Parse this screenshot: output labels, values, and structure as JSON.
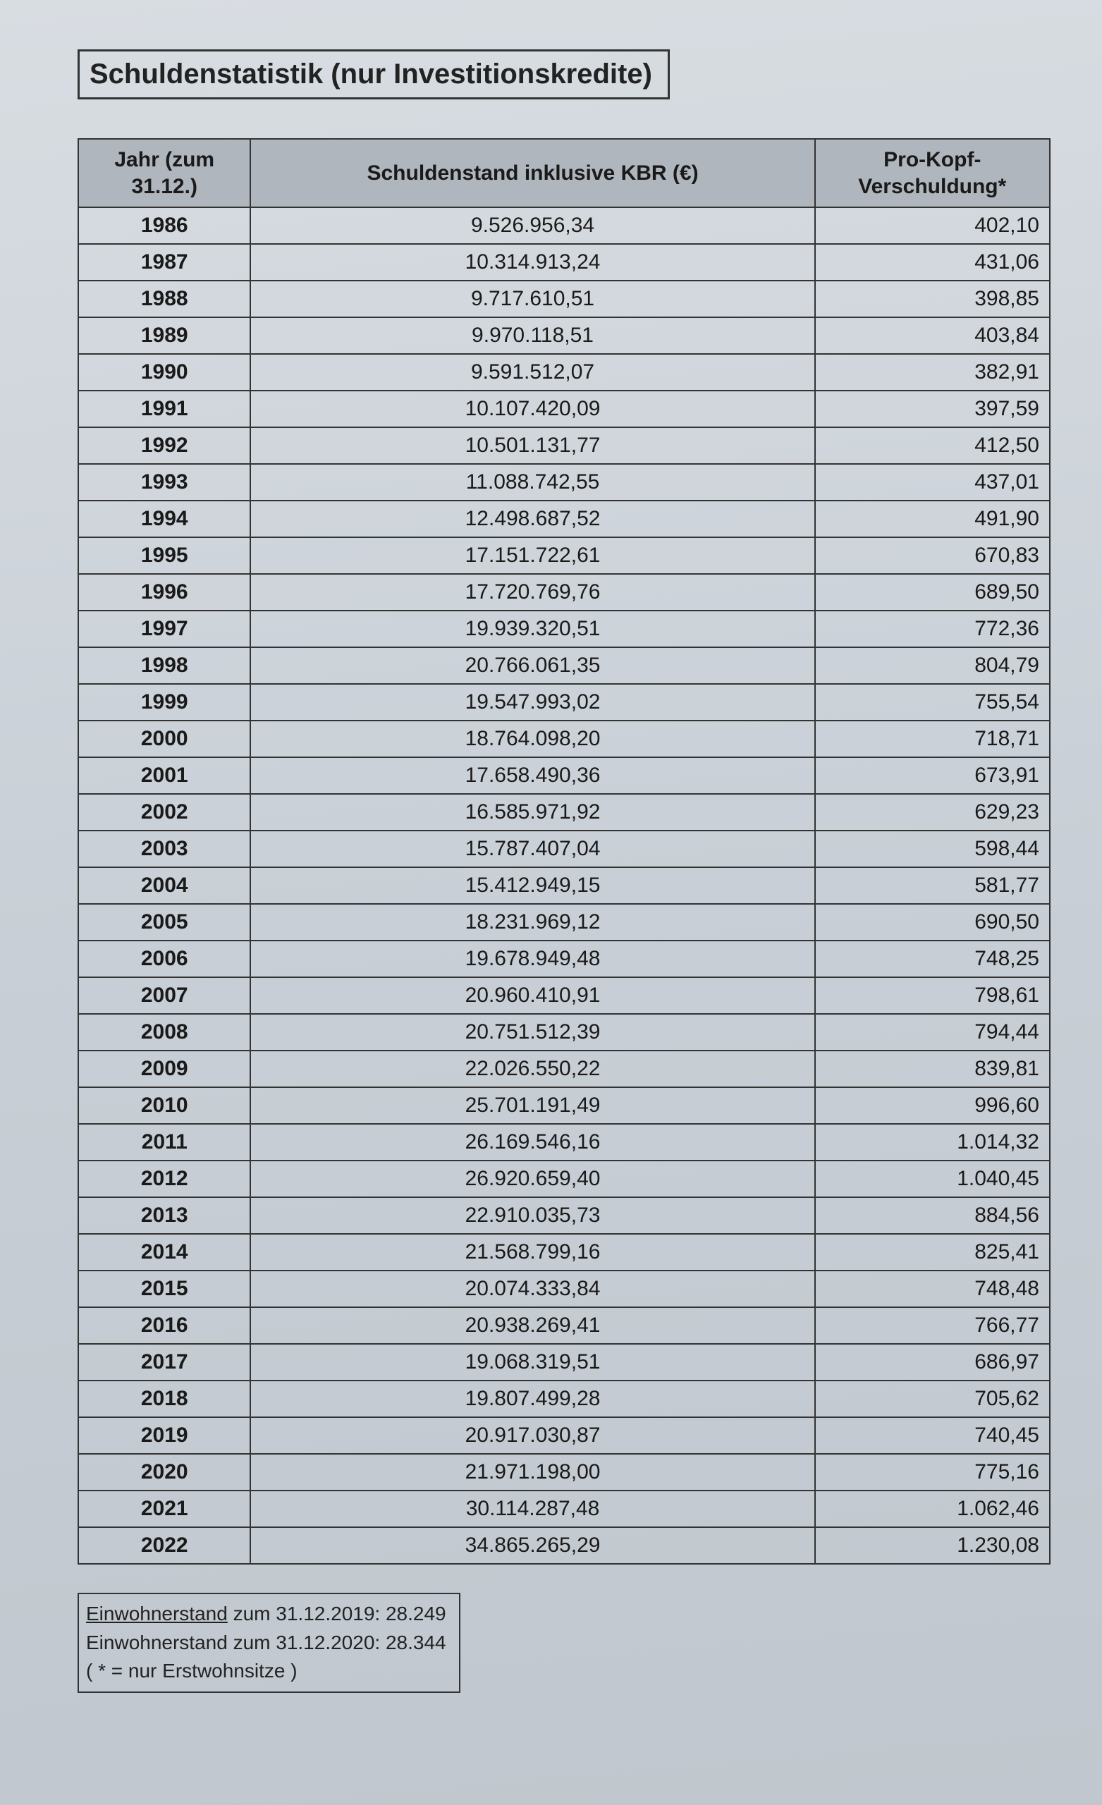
{
  "title": "Schuldenstatistik (nur Investitionskredite)",
  "table": {
    "columns": [
      "Jahr (zum 31.12.)",
      "Schuldenstand inklusive KBR (€)",
      "Pro-Kopf-Verschuldung*"
    ],
    "col_align": [
      "center",
      "center",
      "right"
    ],
    "header_bg": "#b0b6bd",
    "border_color": "#333333",
    "font_size_pt": 22,
    "rows": [
      [
        "1986",
        "9.526.956,34",
        "402,10"
      ],
      [
        "1987",
        "10.314.913,24",
        "431,06"
      ],
      [
        "1988",
        "9.717.610,51",
        "398,85"
      ],
      [
        "1989",
        "9.970.118,51",
        "403,84"
      ],
      [
        "1990",
        "9.591.512,07",
        "382,91"
      ],
      [
        "1991",
        "10.107.420,09",
        "397,59"
      ],
      [
        "1992",
        "10.501.131,77",
        "412,50"
      ],
      [
        "1993",
        "11.088.742,55",
        "437,01"
      ],
      [
        "1994",
        "12.498.687,52",
        "491,90"
      ],
      [
        "1995",
        "17.151.722,61",
        "670,83"
      ],
      [
        "1996",
        "17.720.769,76",
        "689,50"
      ],
      [
        "1997",
        "19.939.320,51",
        "772,36"
      ],
      [
        "1998",
        "20.766.061,35",
        "804,79"
      ],
      [
        "1999",
        "19.547.993,02",
        "755,54"
      ],
      [
        "2000",
        "18.764.098,20",
        "718,71"
      ],
      [
        "2001",
        "17.658.490,36",
        "673,91"
      ],
      [
        "2002",
        "16.585.971,92",
        "629,23"
      ],
      [
        "2003",
        "15.787.407,04",
        "598,44"
      ],
      [
        "2004",
        "15.412.949,15",
        "581,77"
      ],
      [
        "2005",
        "18.231.969,12",
        "690,50"
      ],
      [
        "2006",
        "19.678.949,48",
        "748,25"
      ],
      [
        "2007",
        "20.960.410,91",
        "798,61"
      ],
      [
        "2008",
        "20.751.512,39",
        "794,44"
      ],
      [
        "2009",
        "22.026.550,22",
        "839,81"
      ],
      [
        "2010",
        "25.701.191,49",
        "996,60"
      ],
      [
        "2011",
        "26.169.546,16",
        "1.014,32"
      ],
      [
        "2012",
        "26.920.659,40",
        "1.040,45"
      ],
      [
        "2013",
        "22.910.035,73",
        "884,56"
      ],
      [
        "2014",
        "21.568.799,16",
        "825,41"
      ],
      [
        "2015",
        "20.074.333,84",
        "748,48"
      ],
      [
        "2016",
        "20.938.269,41",
        "766,77"
      ],
      [
        "2017",
        "19.068.319,51",
        "686,97"
      ],
      [
        "2018",
        "19.807.499,28",
        "705,62"
      ],
      [
        "2019",
        "20.917.030,87",
        "740,45"
      ],
      [
        "2020",
        "21.971.198,00",
        "775,16"
      ],
      [
        "2021",
        "30.114.287,48",
        "1.062,46"
      ],
      [
        "2022",
        "34.865.265,29",
        "1.230,08"
      ]
    ]
  },
  "footnote": {
    "line1_label": "Einwohnerstand",
    "line1_rest": " zum 31.12.2019: 28.249",
    "line2": "Einwohnerstand zum 31.12.2020: 28.344",
    "line3": "( * = nur Erstwohnsitze )"
  },
  "page_bg_gradient": [
    "#d8dde2",
    "#c0c7ce"
  ]
}
